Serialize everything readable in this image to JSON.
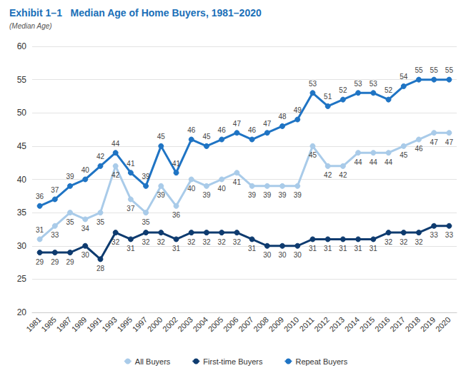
{
  "chart_data": {
    "type": "line",
    "title": "Exhibit 1–1   Median Age of Home Buyers, 1981–2020",
    "subtitle": "(Median Age)",
    "categories": [
      "1981",
      "1985",
      "1987",
      "1989",
      "1991",
      "1993",
      "1995",
      "1997",
      "2000",
      "2002",
      "2003",
      "2004",
      "2005",
      "2006",
      "2007",
      "2008",
      "2009",
      "2010",
      "2011",
      "2012",
      "2013",
      "2014",
      "2015",
      "2016",
      "2017",
      "2018",
      "2019",
      "2020"
    ],
    "series": [
      {
        "name": "All Buyers",
        "color": "#a9cbe9",
        "values": [
          31,
          33,
          35,
          34,
          35,
          42,
          37,
          35,
          39,
          36,
          40,
          39,
          40,
          41,
          39,
          39,
          39,
          39,
          45,
          42,
          42,
          44,
          44,
          44,
          45,
          46,
          47,
          47
        ]
      },
      {
        "name": "First-time Buyers",
        "color": "#0e3b6f",
        "values": [
          29,
          29,
          29,
          30,
          28,
          32,
          31,
          32,
          32,
          31,
          32,
          32,
          32,
          32,
          31,
          30,
          30,
          30,
          31,
          31,
          31,
          31,
          31,
          32,
          32,
          32,
          33,
          33
        ]
      },
      {
        "name": "Repeat Buyers",
        "color": "#1f74c4",
        "values": [
          36,
          37,
          39,
          40,
          42,
          44,
          41,
          39,
          45,
          41,
          46,
          45,
          46,
          47,
          46,
          47,
          48,
          49,
          53,
          51,
          52,
          53,
          53,
          52,
          54,
          55,
          55,
          55
        ]
      }
    ],
    "ylim": [
      20,
      60
    ],
    "yticks": [
      20,
      25,
      30,
      35,
      40,
      45,
      50,
      55,
      60
    ],
    "grid": true,
    "legend": "bottom",
    "data_labels": true,
    "marker": "circle"
  }
}
